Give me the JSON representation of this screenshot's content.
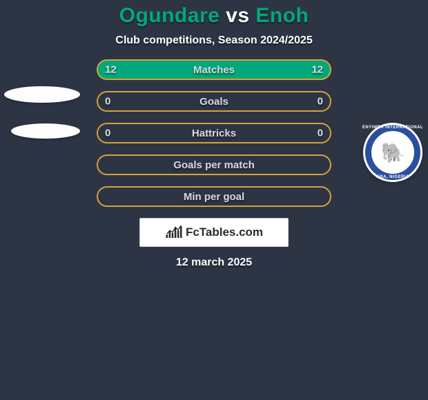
{
  "background_color": "#2d3545",
  "title": {
    "left": "Ogundare",
    "vs": "vs",
    "right": "Enoh",
    "left_color": "#02a87a",
    "vs_color": "#ffffff",
    "right_color": "#02a87a"
  },
  "subtitle": "Club competitions, Season 2024/2025",
  "rows": [
    {
      "label": "Matches",
      "left": "12",
      "right": "12",
      "fill": "#02a87a",
      "border": "#d7a33a",
      "filled": true
    },
    {
      "label": "Goals",
      "left": "0",
      "right": "0",
      "fill": null,
      "border": "#d7a33a",
      "filled": false
    },
    {
      "label": "Hattricks",
      "left": "0",
      "right": "0",
      "fill": null,
      "border": "#d7a33a",
      "filled": false
    },
    {
      "label": "Goals per match",
      "left": "",
      "right": "",
      "fill": null,
      "border": "#d7a33a",
      "filled": false
    },
    {
      "label": "Min per goal",
      "left": "",
      "right": "",
      "fill": null,
      "border": "#d7a33a",
      "filled": false
    }
  ],
  "row_style": {
    "label_color": "#d9dadd",
    "value_color": "#dcdde0",
    "height": 30,
    "radius": 16,
    "border_width": 2
  },
  "badge": {
    "ring_color": "#2a4ea0",
    "top_text": "ENYIMBA INTERNATIONAL",
    "bottom_text": "ABA, NIGERIA",
    "emoji": "🐘"
  },
  "footer": {
    "brand": "FcTables.com",
    "date": "12 march 2025",
    "bars": [
      4,
      8,
      6,
      12,
      9,
      14
    ]
  }
}
